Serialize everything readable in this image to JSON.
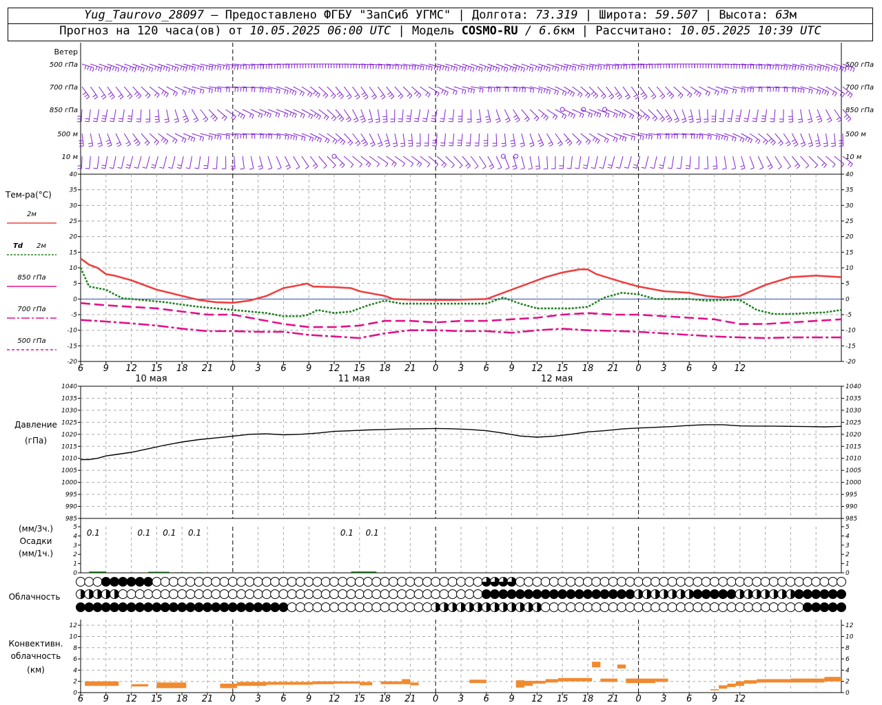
{
  "header": {
    "line1": {
      "station": "Yug_Taurovo_28097",
      "provided": "– Предоставлено ФГБУ \"ЗапСиб УГМС\" |",
      "lon_label": "Долгота:",
      "lon": "73.319",
      "lat_label": "| Широта:",
      "lat": "59.507",
      "alt_label": "| Высота:",
      "alt": "63",
      "alt_unit": "м"
    },
    "line2": {
      "forecast_label": "Прогноз на 120 часа(ов) от",
      "start": "10.05.2025 06:00 UTC",
      "model_label": "| Модель",
      "model": "COSMO-RU",
      "resolution": "/ 6.6",
      "res_unit": "км",
      "calc_label": "| Рассчитано:",
      "calc": "10.05.2025 10:39 UTC"
    }
  },
  "colors": {
    "wind": "#8020d0",
    "t2m": "#ee4040",
    "td2m": "#208020",
    "t850": "#e0108a",
    "zero_line": "#3050c0",
    "precip": "#20a020",
    "convective": "#f08a30"
  },
  "chart_data": [
    {
      "type": "wind_barbs",
      "title": "Ветер",
      "levels": [
        "500 гПа",
        "700 гПа",
        "850 гПа",
        "500 м",
        "10  м"
      ],
      "calm_points": [
        {
          "level": "850 гПа",
          "hours": [
            63,
            65.5,
            68
          ]
        },
        {
          "level": "10  м",
          "hours": [
            36,
            56,
            57.5
          ]
        }
      ]
    },
    {
      "type": "line",
      "title": "Тем-ра(°C)",
      "ylim": [
        -20,
        40
      ],
      "yticks": [
        -20,
        -15,
        -10,
        -5,
        0,
        5,
        10,
        15,
        20,
        25,
        30,
        35,
        40
      ],
      "x_tick_labels": [
        "6",
        "9",
        "12",
        "15",
        "18",
        "21",
        "0",
        "3",
        "6",
        "9",
        "12",
        "15",
        "18",
        "21",
        "0",
        "3",
        "6",
        "9",
        "12",
        "15",
        "18",
        "21",
        "0",
        "3",
        "6",
        "9",
        "12"
      ],
      "day_labels": [
        {
          "hour": 6,
          "label": "10 мая"
        },
        {
          "hour": 30,
          "label": "11 мая"
        },
        {
          "hour": 54,
          "label": "12 мая"
        }
      ],
      "series": [
        {
          "name": "2м",
          "x": [
            6,
            7,
            8,
            9,
            10,
            12,
            15,
            18,
            20,
            22,
            24,
            26,
            28,
            30,
            32,
            32.8,
            33.5,
            36,
            38,
            39,
            41,
            42,
            43,
            45,
            48,
            50,
            54,
            56,
            57,
            59,
            61,
            63,
            65,
            66,
            67,
            70,
            72,
            75,
            78,
            80,
            82,
            84,
            87,
            90,
            93,
            96
          ],
          "y": [
            13,
            11,
            10,
            8,
            7.5,
            6,
            3,
            1,
            -0.3,
            -1,
            -1.2,
            -0.5,
            1,
            3.5,
            4.5,
            5,
            4,
            3.8,
            3.5,
            2.5,
            1.5,
            1,
            0,
            -0.2,
            -0.3,
            -0.3,
            0,
            2,
            3,
            5,
            7,
            8.5,
            9.5,
            9.5,
            8,
            5.5,
            4,
            2.5,
            2,
            1,
            0.5,
            1,
            4.5,
            7,
            7.5,
            7
          ]
        },
        {
          "name": "Td 2м",
          "x": [
            6,
            7,
            8,
            9,
            10,
            11,
            12,
            14,
            16,
            18,
            20,
            22,
            24,
            26,
            28,
            30,
            32,
            33,
            34,
            36,
            38,
            40,
            42,
            44,
            46,
            48,
            50,
            52,
            54,
            55,
            56,
            58,
            60,
            62,
            64,
            66,
            68,
            70,
            72,
            74,
            76,
            78,
            80,
            82,
            84,
            86,
            88,
            90,
            92,
            94,
            96
          ],
          "y": [
            10,
            4,
            3.5,
            3,
            1.5,
            0.2,
            0,
            -0.5,
            -1,
            -1.8,
            -2.5,
            -3,
            -3.5,
            -4,
            -4.5,
            -5.5,
            -5.5,
            -5,
            -3.5,
            -4.5,
            -4,
            -2,
            -0.5,
            -1.5,
            -1.5,
            -1.5,
            -1.5,
            -1.5,
            -1.5,
            -0.5,
            0.5,
            -1.5,
            -3,
            -3,
            -3,
            -2.5,
            0.5,
            2,
            1.5,
            0,
            0,
            0,
            -0.5,
            -0.3,
            -0.3,
            -3.5,
            -4.8,
            -4.8,
            -4.5,
            -4.3,
            -3.5
          ]
        },
        {
          "name": "850 гПа",
          "x": [
            6,
            9,
            12,
            15,
            18,
            21,
            24,
            27,
            30,
            33,
            36,
            39,
            42,
            45,
            48,
            51,
            54,
            57,
            60,
            63,
            66,
            69,
            72,
            75,
            78,
            81,
            84,
            87,
            90,
            93,
            96
          ],
          "y": [
            -1.3,
            -2,
            -2.5,
            -3,
            -4,
            -5,
            -5,
            -6.5,
            -8,
            -9,
            -9,
            -8.5,
            -7,
            -7,
            -7.5,
            -7,
            -7,
            -6.5,
            -6,
            -5,
            -4.5,
            -5,
            -5,
            -5.5,
            -6,
            -6.5,
            -8,
            -8,
            -7.5,
            -7,
            -6.5
          ]
        },
        {
          "name": "700 гПа",
          "x": [
            6,
            9,
            12,
            15,
            18,
            21,
            24,
            27,
            30,
            33,
            36,
            39,
            42,
            45,
            48,
            51,
            54,
            57,
            60,
            63,
            66,
            69,
            72,
            75,
            78,
            81,
            84,
            87,
            90,
            93,
            96
          ],
          "y": [
            -6.7,
            -7.2,
            -7.8,
            -8.5,
            -9.5,
            -10.3,
            -10.3,
            -10.5,
            -10.5,
            -11.5,
            -12,
            -12.5,
            -11,
            -10,
            -10,
            -10.3,
            -10.3,
            -10.8,
            -10,
            -9.5,
            -10,
            -10.2,
            -10.5,
            -11,
            -11.5,
            -12,
            -12.3,
            -12.5,
            -12.3,
            -12.3,
            -12.3
          ]
        },
        {
          "name": "500 гПа",
          "x": [],
          "y": []
        }
      ]
    },
    {
      "type": "line",
      "title": "Давление",
      "ylabel": "(гПа)",
      "ylim": [
        985,
        1040
      ],
      "yticks": [
        985,
        990,
        995,
        1000,
        1005,
        1010,
        1015,
        1020,
        1025,
        1030,
        1035,
        1040
      ],
      "series": [
        {
          "name": "",
          "x": [
            6,
            7,
            8,
            9,
            10,
            12,
            14,
            16,
            18,
            20,
            22,
            24,
            26,
            28,
            30,
            32,
            34,
            36,
            38,
            40,
            42,
            44,
            46,
            48,
            50,
            52,
            54,
            56,
            58,
            60,
            62,
            64,
            66,
            68,
            70,
            72,
            74,
            76,
            78,
            80,
            82,
            84,
            86,
            88,
            90,
            92,
            94,
            96
          ],
          "y": [
            1009.5,
            1009.5,
            1010,
            1011,
            1011.5,
            1012.5,
            1014,
            1015.5,
            1016.8,
            1017.8,
            1018.5,
            1019.2,
            1020,
            1020.2,
            1019.8,
            1020,
            1020.5,
            1021.2,
            1021.5,
            1021.8,
            1022,
            1022.2,
            1022.3,
            1022.4,
            1022.3,
            1022,
            1021.5,
            1020.5,
            1019.3,
            1018.8,
            1019.2,
            1020,
            1021,
            1021.5,
            1022.2,
            1022.6,
            1022.9,
            1023.2,
            1023.7,
            1024,
            1024,
            1023.5,
            1023.4,
            1023.4,
            1023.3,
            1023.2,
            1023.1,
            1023.3
          ]
        }
      ]
    },
    {
      "type": "bar",
      "title": "Осадки",
      "ylabel_top": "(мм/3ч.)",
      "ylabel_bottom": "(мм/1ч.)",
      "ylim": [
        0,
        5
      ],
      "yticks": [
        0,
        1,
        2,
        3,
        4,
        5
      ],
      "precip_3h": [
        {
          "hour": 7.5,
          "label": "0.1"
        },
        {
          "hour": 13.5,
          "label": "0.1"
        },
        {
          "hour": 16.5,
          "label": "0.1"
        },
        {
          "hour": 19.5,
          "label": "0.1"
        },
        {
          "hour": 37.5,
          "label": "0.1"
        },
        {
          "hour": 40.5,
          "label": "0.1"
        }
      ],
      "precip_1h": [
        {
          "x0": 7,
          "x1": 9,
          "value": 0.15
        },
        {
          "x0": 14,
          "x1": 16.5,
          "value": 0.12
        },
        {
          "x0": 17,
          "x1": 19,
          "value": 0.05
        },
        {
          "x0": 19.5,
          "x1": 20.5,
          "value": 0.05
        },
        {
          "x0": 38,
          "x1": 41,
          "value": 0.15
        }
      ]
    },
    {
      "type": "table",
      "title": "Облачность",
      "rows": 3,
      "hours": [
        6,
        96
      ]
    },
    {
      "type": "bar",
      "title": "Конвективн.",
      "subtitle": "облачность",
      "ylabel": "(км)",
      "ylim": [
        0,
        13
      ],
      "yticks": [
        0,
        2,
        4,
        6,
        8,
        10,
        12
      ],
      "bars": [
        {
          "x0": 6.5,
          "x1": 10.5,
          "bottom": 1.2,
          "top": 2.0
        },
        {
          "x0": 12,
          "x1": 14,
          "bottom": 1.1,
          "top": 1.5
        },
        {
          "x0": 15,
          "x1": 18.5,
          "bottom": 0.8,
          "top": 1.8
        },
        {
          "x0": 22.5,
          "x1": 24.5,
          "bottom": 0.8,
          "top": 1.6
        },
        {
          "x0": 24.5,
          "x1": 28,
          "bottom": 1.2,
          "top": 1.9
        },
        {
          "x0": 28,
          "x1": 33.5,
          "bottom": 1.4,
          "top": 1.9
        },
        {
          "x0": 33.5,
          "x1": 36,
          "bottom": 1.5,
          "top": 2.0
        },
        {
          "x0": 36,
          "x1": 39,
          "bottom": 1.6,
          "top": 2.0
        },
        {
          "x0": 39,
          "x1": 40.5,
          "bottom": 1.3,
          "top": 1.9
        },
        {
          "x0": 41.5,
          "x1": 44,
          "bottom": 1.5,
          "top": 2.0
        },
        {
          "x0": 44,
          "x1": 45,
          "bottom": 1.5,
          "top": 2.4
        },
        {
          "x0": 45,
          "x1": 46,
          "bottom": 1.3,
          "top": 1.8
        },
        {
          "x0": 52,
          "x1": 54,
          "bottom": 1.7,
          "top": 2.3
        },
        {
          "x0": 57.5,
          "x1": 58.5,
          "bottom": 0.9,
          "top": 2.2
        },
        {
          "x0": 58.5,
          "x1": 59.5,
          "bottom": 1.2,
          "top": 2.1
        },
        {
          "x0": 59.5,
          "x1": 61,
          "bottom": 1.6,
          "top": 2.1
        },
        {
          "x0": 61,
          "x1": 62.5,
          "bottom": 1.8,
          "top": 2.4
        },
        {
          "x0": 62.5,
          "x1": 65,
          "bottom": 2.0,
          "top": 2.6
        },
        {
          "x0": 65,
          "x1": 66.5,
          "bottom": 2.0,
          "top": 2.6
        },
        {
          "x0": 66.5,
          "x1": 67.5,
          "bottom": 4.5,
          "top": 5.5
        },
        {
          "x0": 67.5,
          "x1": 69.5,
          "bottom": 1.9,
          "top": 2.5
        },
        {
          "x0": 69.5,
          "x1": 70.5,
          "bottom": 4.3,
          "top": 5.0
        },
        {
          "x0": 70.5,
          "x1": 74,
          "bottom": 1.7,
          "top": 2.5
        },
        {
          "x0": 74,
          "x1": 75.5,
          "bottom": 1.9,
          "top": 2.5
        },
        {
          "x0": 80.5,
          "x1": 81.5,
          "bottom": 0.4,
          "top": 0.6
        },
        {
          "x0": 81.5,
          "x1": 82.5,
          "bottom": 0.7,
          "top": 1.3
        },
        {
          "x0": 82.5,
          "x1": 83.5,
          "bottom": 1.0,
          "top": 1.6
        },
        {
          "x0": 83.5,
          "x1": 84.5,
          "bottom": 1.2,
          "top": 2.0
        },
        {
          "x0": 84.5,
          "x1": 86,
          "bottom": 1.6,
          "top": 2.2
        },
        {
          "x0": 86,
          "x1": 90,
          "bottom": 1.8,
          "top": 2.4
        },
        {
          "x0": 90,
          "x1": 94,
          "bottom": 1.8,
          "top": 2.5
        },
        {
          "x0": 94,
          "x1": 96,
          "bottom": 2.0,
          "top": 2.8
        }
      ]
    }
  ]
}
